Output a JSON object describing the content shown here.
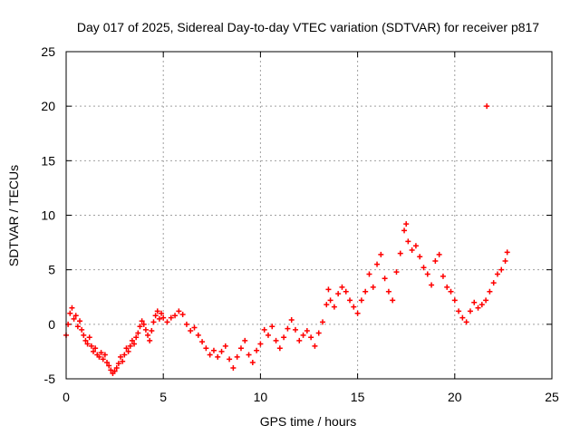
{
  "chart_data": {
    "type": "scatter",
    "title": "Day 017 of 2025, Sidereal Day-to-day VTEC variation (SDTVAR) for receiver p817",
    "xlabel": "GPS time / hours",
    "ylabel": "SDTVAR / TECUs",
    "xlim": [
      0,
      25
    ],
    "ylim": [
      -5,
      25
    ],
    "xticks": [
      "0",
      "5",
      "10",
      "15",
      "20",
      "25"
    ],
    "yticks": [
      "-5",
      "0",
      "5",
      "10",
      "15",
      "20",
      "25"
    ],
    "grid": true,
    "marker": "+",
    "color": "#ff0000",
    "series": [
      {
        "name": "SDTVAR",
        "points": [
          [
            0.0,
            -1.0
          ],
          [
            0.1,
            0.0
          ],
          [
            0.2,
            1.0
          ],
          [
            0.3,
            1.5
          ],
          [
            0.4,
            0.5
          ],
          [
            0.5,
            0.8
          ],
          [
            0.6,
            -0.2
          ],
          [
            0.7,
            0.3
          ],
          [
            0.8,
            -0.5
          ],
          [
            0.9,
            -1.0
          ],
          [
            1.0,
            -1.5
          ],
          [
            1.1,
            -1.8
          ],
          [
            1.2,
            -1.2
          ],
          [
            1.3,
            -2.0
          ],
          [
            1.4,
            -2.5
          ],
          [
            1.5,
            -2.2
          ],
          [
            1.6,
            -2.8
          ],
          [
            1.7,
            -3.0
          ],
          [
            1.8,
            -2.6
          ],
          [
            1.9,
            -3.2
          ],
          [
            2.0,
            -2.8
          ],
          [
            2.1,
            -3.5
          ],
          [
            2.2,
            -3.8
          ],
          [
            2.3,
            -4.2
          ],
          [
            2.4,
            -4.5
          ],
          [
            2.5,
            -4.3
          ],
          [
            2.6,
            -4.0
          ],
          [
            2.7,
            -3.6
          ],
          [
            2.8,
            -3.0
          ],
          [
            2.9,
            -3.4
          ],
          [
            3.0,
            -2.8
          ],
          [
            3.1,
            -2.2
          ],
          [
            3.2,
            -2.5
          ],
          [
            3.3,
            -2.0
          ],
          [
            3.4,
            -1.5
          ],
          [
            3.5,
            -1.8
          ],
          [
            3.6,
            -1.2
          ],
          [
            3.7,
            -0.8
          ],
          [
            3.8,
            -0.2
          ],
          [
            3.9,
            0.3
          ],
          [
            4.0,
            0.0
          ],
          [
            4.1,
            -0.5
          ],
          [
            4.2,
            -1.0
          ],
          [
            4.3,
            -1.5
          ],
          [
            4.4,
            -0.6
          ],
          [
            4.5,
            0.2
          ],
          [
            4.6,
            0.8
          ],
          [
            4.7,
            1.2
          ],
          [
            4.8,
            0.5
          ],
          [
            4.9,
            1.0
          ],
          [
            5.0,
            0.6
          ],
          [
            5.2,
            0.2
          ],
          [
            5.4,
            0.6
          ],
          [
            5.6,
            0.8
          ],
          [
            5.8,
            1.2
          ],
          [
            6.0,
            0.9
          ],
          [
            6.2,
            0.0
          ],
          [
            6.4,
            -0.6
          ],
          [
            6.6,
            -0.3
          ],
          [
            6.8,
            -1.0
          ],
          [
            7.0,
            -1.6
          ],
          [
            7.2,
            -2.2
          ],
          [
            7.4,
            -2.8
          ],
          [
            7.6,
            -2.4
          ],
          [
            7.8,
            -3.0
          ],
          [
            8.0,
            -2.5
          ],
          [
            8.2,
            -2.0
          ],
          [
            8.4,
            -3.2
          ],
          [
            8.6,
            -4.0
          ],
          [
            8.8,
            -3.0
          ],
          [
            9.0,
            -2.2
          ],
          [
            9.2,
            -1.5
          ],
          [
            9.4,
            -2.8
          ],
          [
            9.6,
            -3.5
          ],
          [
            9.8,
            -2.4
          ],
          [
            10.0,
            -1.8
          ],
          [
            10.2,
            -0.5
          ],
          [
            10.4,
            -1.0
          ],
          [
            10.6,
            -0.2
          ],
          [
            10.8,
            -1.5
          ],
          [
            11.0,
            -2.2
          ],
          [
            11.2,
            -1.2
          ],
          [
            11.4,
            -0.4
          ],
          [
            11.6,
            0.4
          ],
          [
            11.8,
            -0.5
          ],
          [
            12.0,
            -1.5
          ],
          [
            12.2,
            -1.0
          ],
          [
            12.4,
            -0.6
          ],
          [
            12.6,
            -1.2
          ],
          [
            12.8,
            -2.0
          ],
          [
            13.0,
            -0.8
          ],
          [
            13.2,
            0.2
          ],
          [
            13.4,
            1.8
          ],
          [
            13.5,
            3.2
          ],
          [
            13.6,
            2.2
          ],
          [
            13.8,
            1.6
          ],
          [
            14.0,
            2.8
          ],
          [
            14.2,
            3.4
          ],
          [
            14.4,
            3.0
          ],
          [
            14.6,
            2.2
          ],
          [
            14.8,
            1.6
          ],
          [
            15.0,
            1.0
          ],
          [
            15.2,
            2.2
          ],
          [
            15.4,
            3.0
          ],
          [
            15.6,
            4.6
          ],
          [
            15.8,
            3.4
          ],
          [
            16.0,
            5.5
          ],
          [
            16.2,
            6.4
          ],
          [
            16.4,
            4.2
          ],
          [
            16.6,
            3.0
          ],
          [
            16.8,
            2.2
          ],
          [
            17.0,
            4.8
          ],
          [
            17.2,
            6.5
          ],
          [
            17.4,
            8.6
          ],
          [
            17.5,
            9.2
          ],
          [
            17.6,
            7.6
          ],
          [
            17.8,
            6.8
          ],
          [
            18.0,
            7.2
          ],
          [
            18.2,
            6.2
          ],
          [
            18.4,
            5.2
          ],
          [
            18.6,
            4.6
          ],
          [
            18.8,
            3.6
          ],
          [
            19.0,
            5.8
          ],
          [
            19.2,
            6.4
          ],
          [
            19.4,
            4.4
          ],
          [
            19.6,
            3.4
          ],
          [
            19.8,
            3.0
          ],
          [
            20.0,
            2.2
          ],
          [
            20.2,
            1.2
          ],
          [
            20.4,
            0.6
          ],
          [
            20.6,
            0.2
          ],
          [
            20.8,
            1.2
          ],
          [
            21.0,
            2.0
          ],
          [
            21.2,
            1.5
          ],
          [
            21.4,
            1.8
          ],
          [
            21.6,
            2.2
          ],
          [
            21.8,
            3.0
          ],
          [
            22.0,
            3.8
          ],
          [
            22.2,
            4.6
          ],
          [
            22.4,
            5.0
          ],
          [
            22.6,
            5.8
          ],
          [
            22.7,
            6.6
          ],
          [
            21.65,
            20.0
          ]
        ]
      }
    ]
  }
}
